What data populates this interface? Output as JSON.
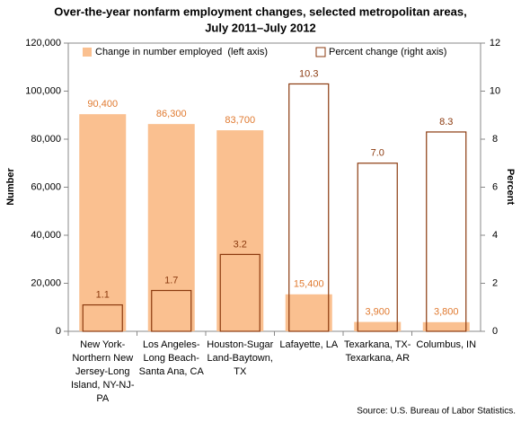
{
  "chart_data": {
    "type": "bar",
    "title": [
      "Over-the-year nonfarm employment changes, selected metropolitan areas,",
      "July 2011–July 2012"
    ],
    "categories": [
      "New York-Northern New Jersey-Long Island, NY-NJ-PA",
      "Los Angeles-Long Beach-Santa Ana, CA",
      "Houston-Sugar Land-Baytown, TX",
      "Lafayette, LA",
      "Texarkana, TX-Texarkana, AR",
      "Columbus, IN"
    ],
    "series": [
      {
        "name": "Change in number employed  (left axis)",
        "color": "#fac090",
        "values": [
          90400,
          86300,
          83700,
          15400,
          3900,
          3800
        ],
        "value_labels": [
          "90,400",
          "86,300",
          "83,700",
          "15,400",
          "3,900",
          "3,800"
        ]
      },
      {
        "name": "Percent change (right axis)",
        "color": "#8b3a0f",
        "axis": "y2",
        "values": [
          1.1,
          1.7,
          3.2,
          10.3,
          7.0,
          8.3
        ],
        "value_labels": [
          "1.1",
          "1.7",
          "3.2",
          "10.3",
          "7.0",
          "8.3"
        ]
      }
    ],
    "ylabel": "Number",
    "y2label": "Percent",
    "ylim": [
      0,
      120000
    ],
    "yticks": [
      0,
      {
        "value": 20000,
        "label": "20,000"
      },
      {
        "value": 40000,
        "label": "40,000"
      },
      {
        "value": 60000,
        "label": "60,000"
      },
      {
        "value": 80000,
        "label": "80,000"
      },
      {
        "value": 100000,
        "label": "100,000"
      },
      {
        "value": 120000,
        "label": "120,000"
      }
    ],
    "y2lim": [
      0,
      12
    ],
    "y2ticks": [
      0,
      2,
      4,
      6,
      8,
      10,
      12
    ],
    "legend": "top",
    "source": "Source: U.S. Bureau of Labor Statistics."
  }
}
